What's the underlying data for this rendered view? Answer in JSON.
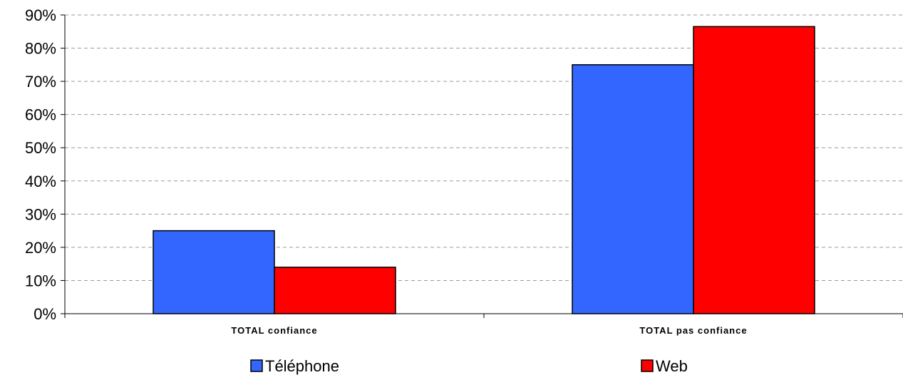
{
  "chart_data": {
    "type": "bar",
    "title": "",
    "xlabel": "",
    "ylabel": "",
    "categories": [
      "TOTAL confiance",
      "TOTAL pas confiance"
    ],
    "series": [
      {
        "name": "Téléphone",
        "values": [
          25,
          75
        ],
        "color": "#3366ff"
      },
      {
        "name": "Web",
        "values": [
          14,
          86.5
        ],
        "color": "#ff0000"
      }
    ],
    "ylim": [
      0,
      90
    ],
    "yticks": [
      0,
      10,
      20,
      30,
      40,
      50,
      60,
      70,
      80,
      90
    ],
    "ytick_labels": [
      "0%",
      "10%",
      "20%",
      "30%",
      "40%",
      "50%",
      "60%",
      "70%",
      "80%",
      "90%"
    ],
    "grid": true,
    "grid_style": "dashed",
    "legend_position": "bottom"
  }
}
